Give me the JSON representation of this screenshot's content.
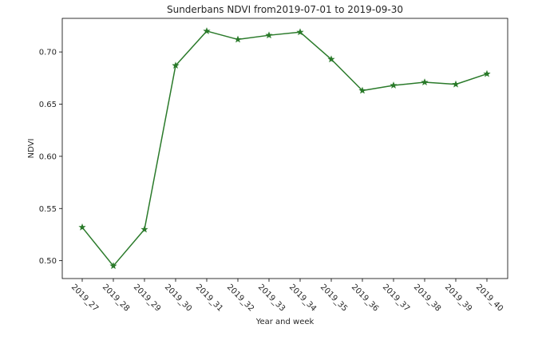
{
  "chart_data": {
    "type": "line",
    "title": "Sunderbans NDVI from2019-07-01 to 2019-09-30",
    "xlabel": "Year and week",
    "ylabel": "NDVI",
    "categories": [
      "2019_27",
      "2019_28",
      "2019_29",
      "2019_30",
      "2019_31",
      "2019_32",
      "2019_33",
      "2019_34",
      "2019_35",
      "2019_36",
      "2019_37",
      "2019_38",
      "2019_39",
      "2019_40"
    ],
    "series": [
      {
        "values": [
          0.532,
          0.495,
          0.53,
          0.687,
          0.72,
          0.712,
          0.716,
          0.719,
          0.693,
          0.663,
          0.668,
          0.671,
          0.669,
          0.679
        ],
        "color": "#2a7a2a",
        "marker": "star"
      }
    ],
    "yticks": [
      0.5,
      0.55,
      0.6,
      0.65,
      0.7
    ],
    "ytick_labels": [
      "0.50",
      "0.55",
      "0.60",
      "0.65",
      "0.70"
    ],
    "ylim": [
      0.4829,
      0.7322
    ],
    "grid": false,
    "legend": "none"
  }
}
